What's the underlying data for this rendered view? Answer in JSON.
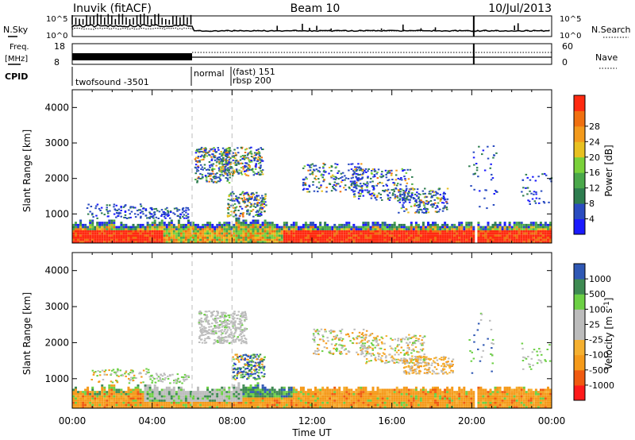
{
  "header": {
    "station": "Inuvik (fitACF)",
    "beam": "Beam 10",
    "date": "10/Jul/2013"
  },
  "strips": {
    "nsky_label": "N.Sky",
    "nsky_ticks": [
      "10^5",
      "10^0"
    ],
    "nsearch_label": "N.Search",
    "nsearch_ticks": [
      "10^5",
      "10^0"
    ],
    "freq_label": "Freq.",
    "freq_unit": "[MHz]",
    "freq_ticks": [
      "18",
      "8"
    ],
    "nave_label": "Nave",
    "nave_ticks": [
      "60",
      "0"
    ],
    "cpid_label": "CPID",
    "cpid_segments": [
      {
        "label": "twofsound -3501"
      },
      {
        "label": "normal"
      },
      {
        "label": "(fast) 151"
      },
      {
        "label": "rbsp 200"
      }
    ]
  },
  "colors": {
    "power": [
      "#1a1aff",
      "#2a4cc0",
      "#2e7d4f",
      "#4aa84a",
      "#7ad13a",
      "#e8c020",
      "#f39a1c",
      "#f07010",
      "#ff2a10"
    ],
    "velocity": [
      "#ff1a1a",
      "#f05a10",
      "#f59a1a",
      "#f5b030",
      "#bcbcbc",
      "#bcbcbc",
      "#6cd044",
      "#3e8a52",
      "#2f58b4",
      "#1f3cc8"
    ]
  },
  "chart_data": [
    {
      "type": "heatmap",
      "title": "Inuvik (fitACF) Beam 10 10/Jul/2013",
      "xlabel": "Time UT",
      "ylabel": "Slant Range [km]",
      "x_ticks": [
        "00:00",
        "04:00",
        "08:00",
        "12:00",
        "16:00",
        "20:00",
        "00:00"
      ],
      "xlim": [
        0,
        24
      ],
      "y_ticks": [
        1000,
        2000,
        3000,
        4000
      ],
      "ylim": [
        180,
        4500
      ],
      "colorbar": {
        "label": "Power [dB]",
        "ticks": [
          "4",
          "8",
          "12",
          "16",
          "20",
          "24",
          "28"
        ],
        "range": [
          0,
          30
        ]
      },
      "mode_change_hours": [
        6,
        8
      ]
    },
    {
      "type": "heatmap",
      "title": "Inuvik (fitACF) Beam 10 10/Jul/2013",
      "xlabel": "Time UT",
      "ylabel": "Slant Range [km]",
      "x_ticks": [
        "00:00",
        "04:00",
        "08:00",
        "12:00",
        "16:00",
        "20:00",
        "00:00"
      ],
      "xlim": [
        0,
        24
      ],
      "y_ticks": [
        1000,
        2000,
        3000,
        4000
      ],
      "ylim": [
        180,
        4500
      ],
      "colorbar": {
        "label": "Velocity [m s^-1]",
        "ticks": [
          "1000",
          "500",
          "100",
          "25",
          "-25",
          "-100",
          "-500",
          "-1000"
        ]
      },
      "mode_change_hours": [
        6,
        8
      ]
    }
  ]
}
